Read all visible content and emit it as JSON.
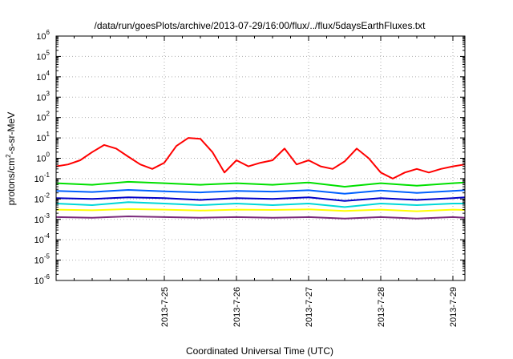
{
  "chart_data": {
    "type": "line",
    "title": "/data/run/goesPlots/archive/2013-07-29/16:00/flux/../flux/5daysEarthFluxes.txt",
    "xlabel": "Coordinated Universal Time (UTC)",
    "ylabel": {
      "base": "protons/cm",
      "sup": "2",
      "rest": "-s-sr-MeV"
    },
    "x_axis": {
      "start": "2013-07-24T00:00Z",
      "end": "2013-07-29T16:00Z",
      "ticks": [
        "2013-7-25",
        "2013-7-26",
        "2013-7-27",
        "2013-7-28",
        "2013-7-29"
      ]
    },
    "y_axis": {
      "scale": "log",
      "range": [
        1e-06,
        1000000.0
      ],
      "tick_exponents": [
        -6,
        -5,
        -4,
        -3,
        -2,
        -1,
        0,
        1,
        2,
        3,
        4,
        5,
        6
      ]
    },
    "grid": true,
    "legend": "none",
    "series": [
      {
        "color": "#7b2a7b",
        "x": [
          "2013-07-24T00:00Z",
          "2013-07-24T12:00Z",
          "2013-07-25T00:00Z",
          "2013-07-25T12:00Z",
          "2013-07-26T00:00Z",
          "2013-07-26T12:00Z",
          "2013-07-27T00:00Z",
          "2013-07-27T12:00Z",
          "2013-07-28T00:00Z",
          "2013-07-28T12:00Z",
          "2013-07-29T00:00Z",
          "2013-07-29T12:00Z",
          "2013-07-29T16:00Z"
        ],
        "y": [
          0.0013,
          0.0012,
          0.0014,
          0.0013,
          0.0012,
          0.0013,
          0.0012,
          0.0013,
          0.0011,
          0.0013,
          0.0011,
          0.0013,
          0.0012
        ]
      },
      {
        "color": "#ffff00",
        "x": [
          "2013-07-24T00:00Z",
          "2013-07-24T12:00Z",
          "2013-07-25T00:00Z",
          "2013-07-25T12:00Z",
          "2013-07-26T00:00Z",
          "2013-07-26T12:00Z",
          "2013-07-27T00:00Z",
          "2013-07-27T12:00Z",
          "2013-07-28T00:00Z",
          "2013-07-28T12:00Z",
          "2013-07-29T00:00Z",
          "2013-07-29T12:00Z",
          "2013-07-29T16:00Z"
        ],
        "y": [
          0.003,
          0.0028,
          0.0032,
          0.003,
          0.0027,
          0.003,
          0.0029,
          0.0031,
          0.0026,
          0.003,
          0.0025,
          0.003,
          0.0029
        ]
      },
      {
        "color": "#00d8d8",
        "x": [
          "2013-07-24T00:00Z",
          "2013-07-24T12:00Z",
          "2013-07-25T00:00Z",
          "2013-07-25T12:00Z",
          "2013-07-26T00:00Z",
          "2013-07-26T12:00Z",
          "2013-07-27T00:00Z",
          "2013-07-27T12:00Z",
          "2013-07-28T00:00Z",
          "2013-07-28T12:00Z",
          "2013-07-29T00:00Z",
          "2013-07-29T12:00Z",
          "2013-07-29T16:00Z"
        ],
        "y": [
          0.006,
          0.005,
          0.007,
          0.006,
          0.005,
          0.006,
          0.005,
          0.006,
          0.004,
          0.006,
          0.005,
          0.006,
          0.006
        ]
      },
      {
        "color": "#0000c8",
        "x": [
          "2013-07-24T00:00Z",
          "2013-07-24T12:00Z",
          "2013-07-25T00:00Z",
          "2013-07-25T12:00Z",
          "2013-07-26T00:00Z",
          "2013-07-26T12:00Z",
          "2013-07-27T00:00Z",
          "2013-07-27T12:00Z",
          "2013-07-28T00:00Z",
          "2013-07-28T12:00Z",
          "2013-07-29T00:00Z",
          "2013-07-29T12:00Z",
          "2013-07-29T16:00Z"
        ],
        "y": [
          0.011,
          0.01,
          0.012,
          0.011,
          0.009,
          0.011,
          0.01,
          0.012,
          0.008,
          0.011,
          0.009,
          0.011,
          0.012
        ]
      },
      {
        "color": "#0060ff",
        "x": [
          "2013-07-24T00:00Z",
          "2013-07-24T12:00Z",
          "2013-07-25T00:00Z",
          "2013-07-25T12:00Z",
          "2013-07-26T00:00Z",
          "2013-07-26T12:00Z",
          "2013-07-27T00:00Z",
          "2013-07-27T12:00Z",
          "2013-07-28T00:00Z",
          "2013-07-28T12:00Z",
          "2013-07-29T00:00Z",
          "2013-07-29T12:00Z",
          "2013-07-29T16:00Z"
        ],
        "y": [
          0.025,
          0.022,
          0.028,
          0.024,
          0.021,
          0.025,
          0.023,
          0.027,
          0.018,
          0.026,
          0.02,
          0.025,
          0.027
        ]
      },
      {
        "color": "#00e000",
        "x": [
          "2013-07-24T00:00Z",
          "2013-07-24T12:00Z",
          "2013-07-25T00:00Z",
          "2013-07-25T12:00Z",
          "2013-07-26T00:00Z",
          "2013-07-26T12:00Z",
          "2013-07-27T00:00Z",
          "2013-07-27T12:00Z",
          "2013-07-28T00:00Z",
          "2013-07-28T12:00Z",
          "2013-07-29T00:00Z",
          "2013-07-29T12:00Z",
          "2013-07-29T16:00Z"
        ],
        "y": [
          0.06,
          0.05,
          0.07,
          0.06,
          0.05,
          0.06,
          0.05,
          0.065,
          0.04,
          0.06,
          0.045,
          0.06,
          0.065
        ]
      },
      {
        "color": "#ff0000",
        "x": [
          "2013-07-24T00:00Z",
          "2013-07-24T04:00Z",
          "2013-07-24T08:00Z",
          "2013-07-24T12:00Z",
          "2013-07-24T16:00Z",
          "2013-07-24T20:00Z",
          "2013-07-25T00:00Z",
          "2013-07-25T04:00Z",
          "2013-07-25T08:00Z",
          "2013-07-25T12:00Z",
          "2013-07-25T16:00Z",
          "2013-07-25T20:00Z",
          "2013-07-26T00:00Z",
          "2013-07-26T04:00Z",
          "2013-07-26T08:00Z",
          "2013-07-26T12:00Z",
          "2013-07-26T16:00Z",
          "2013-07-26T20:00Z",
          "2013-07-27T00:00Z",
          "2013-07-27T04:00Z",
          "2013-07-27T08:00Z",
          "2013-07-27T12:00Z",
          "2013-07-27T16:00Z",
          "2013-07-27T20:00Z",
          "2013-07-28T00:00Z",
          "2013-07-28T04:00Z",
          "2013-07-28T08:00Z",
          "2013-07-28T12:00Z",
          "2013-07-28T16:00Z",
          "2013-07-28T20:00Z",
          "2013-07-29T00:00Z",
          "2013-07-29T04:00Z",
          "2013-07-29T08:00Z",
          "2013-07-29T12:00Z",
          "2013-07-29T16:00Z"
        ],
        "y": [
          0.4,
          0.5,
          0.8,
          2.0,
          4.5,
          3.0,
          1.2,
          0.5,
          0.3,
          0.6,
          4.0,
          10.0,
          9.0,
          2.0,
          0.2,
          0.8,
          0.4,
          0.6,
          0.8,
          3.0,
          0.5,
          0.8,
          0.4,
          0.3,
          0.7,
          3.0,
          1.0,
          0.2,
          0.1,
          0.2,
          0.3,
          0.2,
          0.3,
          0.4,
          0.5
        ]
      }
    ]
  }
}
